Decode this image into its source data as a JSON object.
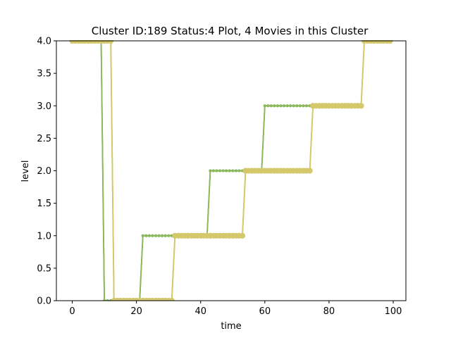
{
  "chart_data": {
    "type": "line",
    "title": "Cluster ID:189 Status:4 Plot, 4 Movies in this Cluster",
    "xlabel": "time",
    "ylabel": "level",
    "xlim": [
      -4.95,
      103.95
    ],
    "ylim": [
      0,
      4
    ],
    "x_ticks": [
      0,
      20,
      40,
      60,
      80,
      100
    ],
    "x_tick_labels": [
      "0",
      "20",
      "40",
      "60",
      "80",
      "100"
    ],
    "y_ticks": [
      0,
      0.5,
      1,
      1.5,
      2,
      2.5,
      3,
      3.5,
      4
    ],
    "y_tick_labels": [
      "0.0",
      "0.5",
      "1.0",
      "1.5",
      "2.0",
      "2.5",
      "3.0",
      "3.5",
      "4.0"
    ],
    "grid": false,
    "series": [
      {
        "color": "#6aa84f",
        "marker_size": 2,
        "segments": [
          {
            "from": 0,
            "to": 9,
            "value": 4
          },
          {
            "from": 10,
            "to": 21,
            "value": 0
          },
          {
            "from": 22,
            "to": 42,
            "value": 1
          },
          {
            "from": 43,
            "to": 59,
            "value": 2
          },
          {
            "from": 60,
            "to": 74,
            "value": 3
          }
        ]
      },
      {
        "color": "#8bb85a",
        "marker_size": 2,
        "segments": [
          {
            "from": 0,
            "to": 9,
            "value": 4
          },
          {
            "from": 10,
            "to": 21,
            "value": 0
          },
          {
            "from": 22,
            "to": 42,
            "value": 1
          },
          {
            "from": 43,
            "to": 59,
            "value": 2
          },
          {
            "from": 60,
            "to": 74,
            "value": 3
          }
        ]
      },
      {
        "color": "#b8c46a",
        "marker_size": 4,
        "segments": [
          {
            "from": 0,
            "to": 12,
            "value": 4
          },
          {
            "from": 13,
            "to": 31,
            "value": 0
          },
          {
            "from": 32,
            "to": 53,
            "value": 1
          },
          {
            "from": 54,
            "to": 74,
            "value": 2
          },
          {
            "from": 75,
            "to": 90,
            "value": 3
          },
          {
            "from": 91,
            "to": 99,
            "value": 4
          }
        ]
      },
      {
        "color": "#d4c86a",
        "marker_size": 4,
        "segments": [
          {
            "from": 0,
            "to": 12,
            "value": 4
          },
          {
            "from": 13,
            "to": 31,
            "value": 0
          },
          {
            "from": 32,
            "to": 53,
            "value": 1
          },
          {
            "from": 54,
            "to": 74,
            "value": 2
          },
          {
            "from": 75,
            "to": 90,
            "value": 3
          },
          {
            "from": 91,
            "to": 99,
            "value": 4
          }
        ]
      }
    ]
  }
}
